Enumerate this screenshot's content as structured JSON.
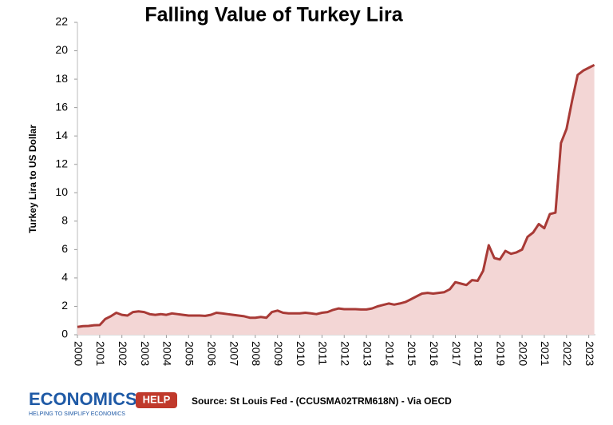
{
  "chart_data": {
    "type": "line",
    "title": "Falling Value of Turkey Lira",
    "y_label": "Turkey Lira to US Dollar",
    "x": [
      2000,
      2000.25,
      2000.5,
      2000.75,
      2001,
      2001.25,
      2001.5,
      2001.75,
      2002,
      2002.25,
      2002.5,
      2002.75,
      2003,
      2003.25,
      2003.5,
      2003.75,
      2004,
      2004.25,
      2004.5,
      2004.75,
      2005,
      2005.25,
      2005.5,
      2005.75,
      2006,
      2006.25,
      2006.5,
      2006.75,
      2007,
      2007.25,
      2007.5,
      2007.75,
      2008,
      2008.25,
      2008.5,
      2008.75,
      2009,
      2009.25,
      2009.5,
      2009.75,
      2010,
      2010.25,
      2010.5,
      2010.75,
      2011,
      2011.25,
      2011.5,
      2011.75,
      2012,
      2012.25,
      2012.5,
      2012.75,
      2013,
      2013.25,
      2013.5,
      2013.75,
      2014,
      2014.25,
      2014.5,
      2014.75,
      2015,
      2015.25,
      2015.5,
      2015.75,
      2016,
      2016.25,
      2016.5,
      2016.75,
      2017,
      2017.25,
      2017.5,
      2017.75,
      2018,
      2018.25,
      2018.5,
      2018.75,
      2019,
      2019.25,
      2019.5,
      2019.75,
      2020,
      2020.25,
      2020.5,
      2020.75,
      2021,
      2021.25,
      2021.5,
      2021.75,
      2022,
      2022.25,
      2022.5,
      2022.75,
      2023,
      2023.25
    ],
    "series": [
      {
        "name": "Turkey Lira to US Dollar",
        "color": "#a83a36",
        "fill": "#f3d6d5",
        "values": [
          0.55,
          0.6,
          0.62,
          0.67,
          0.68,
          1.1,
          1.3,
          1.55,
          1.4,
          1.35,
          1.6,
          1.65,
          1.6,
          1.45,
          1.4,
          1.45,
          1.4,
          1.5,
          1.45,
          1.4,
          1.35,
          1.35,
          1.35,
          1.33,
          1.4,
          1.55,
          1.5,
          1.45,
          1.4,
          1.35,
          1.3,
          1.2,
          1.2,
          1.25,
          1.2,
          1.6,
          1.7,
          1.55,
          1.5,
          1.5,
          1.5,
          1.55,
          1.5,
          1.45,
          1.55,
          1.6,
          1.75,
          1.85,
          1.8,
          1.8,
          1.8,
          1.78,
          1.78,
          1.85,
          2.0,
          2.1,
          2.2,
          2.12,
          2.2,
          2.3,
          2.5,
          2.7,
          2.9,
          2.95,
          2.9,
          2.95,
          3.0,
          3.2,
          3.7,
          3.6,
          3.5,
          3.85,
          3.8,
          4.5,
          6.3,
          5.4,
          5.3,
          5.9,
          5.7,
          5.8,
          6.0,
          6.9,
          7.2,
          7.8,
          7.5,
          8.5,
          8.6,
          13.5,
          14.5,
          16.5,
          18.3,
          18.6,
          18.8,
          19.0
        ]
      }
    ],
    "xlim": [
      2000,
      2023.3
    ],
    "xticks": [
      2000,
      2001,
      2002,
      2003,
      2004,
      2005,
      2006,
      2007,
      2008,
      2009,
      2010,
      2011,
      2012,
      2013,
      2014,
      2015,
      2016,
      2017,
      2018,
      2019,
      2020,
      2021,
      2022,
      2023
    ],
    "ylim": [
      0,
      22
    ],
    "yticks": [
      0,
      2,
      4,
      6,
      8,
      10,
      12,
      14,
      16,
      18,
      20,
      22
    ],
    "grid": false,
    "logo": {
      "main": "ECONOMICS",
      "badge": "HELP",
      "tagline": "HELPING TO SIMPLIFY ECONOMICS"
    },
    "source": "Source: St Louis Fed - (CCUSMA02TRM618N) -  Via OECD"
  }
}
